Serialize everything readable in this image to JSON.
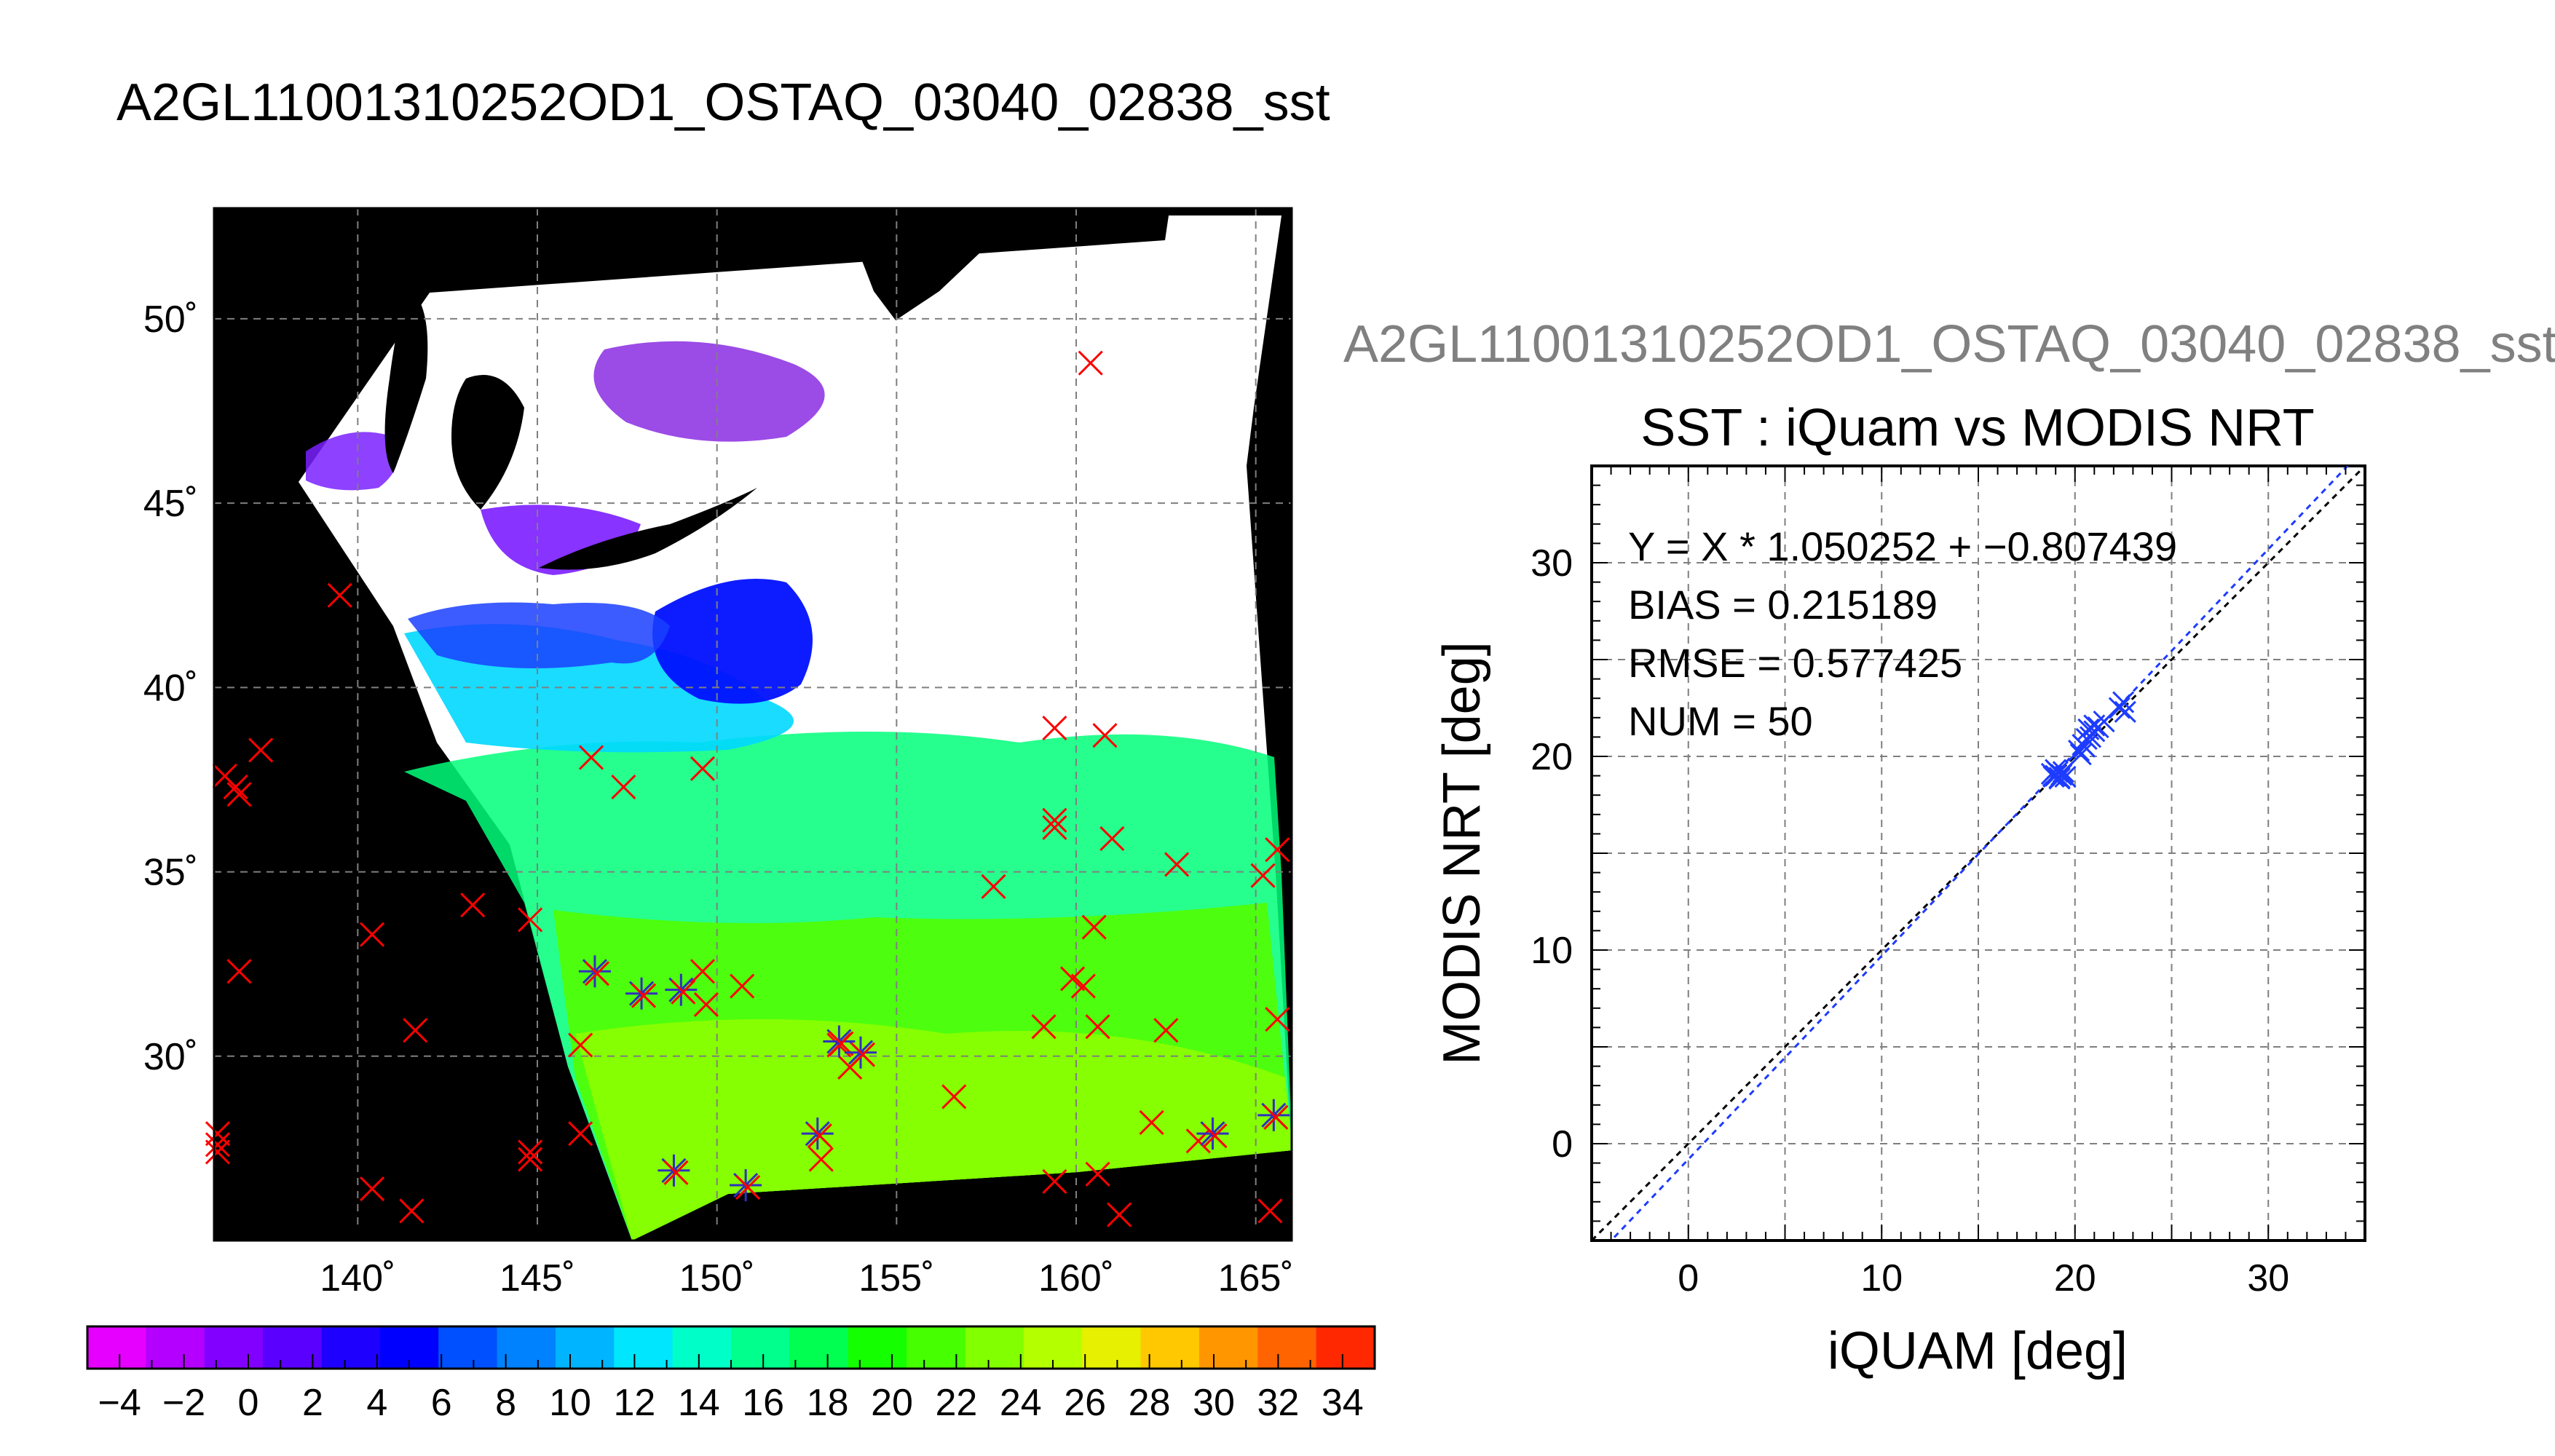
{
  "titles": {
    "main": "A2GL11001310252OD1_OSTAQ_03040_02838_sst",
    "right": "A2GL11001310252OD1_OSTAQ_03040_02838_sst"
  },
  "chart_data": [
    {
      "type": "heatmap",
      "description_kind": "map",
      "title": "",
      "lon_range": [
        136,
        166
      ],
      "lat_range": [
        25,
        53
      ],
      "lon_ticks": [
        140,
        145,
        150,
        155,
        160,
        165
      ],
      "lat_ticks": [
        30,
        35,
        40,
        45,
        50
      ],
      "lon_tick_labels": [
        "140˚",
        "145˚",
        "150˚",
        "155˚",
        "160˚",
        "165˚"
      ],
      "lat_tick_labels": [
        "30˚",
        "35˚",
        "40˚",
        "45˚",
        "50˚"
      ],
      "grid": true,
      "colorbar": {
        "min": -5,
        "max": 35,
        "step": 2,
        "tick_labels": [
          "−4",
          "−2",
          "0",
          "2",
          "4",
          "6",
          "8",
          "10",
          "12",
          "14",
          "16",
          "18",
          "20",
          "22",
          "24",
          "26",
          "28",
          "30",
          "32",
          "34"
        ],
        "tick_values": [
          -4,
          -2,
          0,
          2,
          4,
          6,
          8,
          10,
          12,
          14,
          16,
          18,
          20,
          22,
          24,
          26,
          28,
          30,
          32,
          34
        ],
        "colors": [
          "#e600ff",
          "#b400ff",
          "#8200ff",
          "#5a00ff",
          "#1e00ff",
          "#0000ff",
          "#0050ff",
          "#0082ff",
          "#00b4ff",
          "#00e6ff",
          "#00ffc8",
          "#00ff8c",
          "#00ff50",
          "#14ff00",
          "#46ff00",
          "#82ff00",
          "#b4ff00",
          "#e6f000",
          "#ffc800",
          "#ff9600",
          "#ff6400",
          "#ff2800"
        ]
      },
      "colors": {
        "land": "#000000",
        "no_data": "#ffffff",
        "match": "#ff0000",
        "valid_match": "#3030c0"
      },
      "matchups_red": [
        [
          139.5,
          42.5
        ],
        [
          136.3,
          37.6
        ],
        [
          136.6,
          37.3
        ],
        [
          136.7,
          37.1
        ],
        [
          137.3,
          38.3
        ],
        [
          136.7,
          32.3
        ],
        [
          136.1,
          27.9
        ],
        [
          136.1,
          27.6
        ],
        [
          136.1,
          27.4
        ],
        [
          140.4,
          33.3
        ],
        [
          141.6,
          30.7
        ],
        [
          143.2,
          34.1
        ],
        [
          144.8,
          33.7
        ],
        [
          140.4,
          26.4
        ],
        [
          141.5,
          25.8
        ],
        [
          144.8,
          27.4
        ],
        [
          144.8,
          27.2
        ],
        [
          146.2,
          27.9
        ],
        [
          146.2,
          30.3
        ],
        [
          146.5,
          38.1
        ],
        [
          147.4,
          37.3
        ],
        [
          149.6,
          37.8
        ],
        [
          149.6,
          32.3
        ],
        [
          149.7,
          31.4
        ],
        [
          150.7,
          31.9
        ],
        [
          152.9,
          27.2
        ],
        [
          153.4,
          30.3
        ],
        [
          153.7,
          29.7
        ],
        [
          156.6,
          28.9
        ],
        [
          157.7,
          34.6
        ],
        [
          159.4,
          38.9
        ],
        [
          160.8,
          38.7
        ],
        [
          159.4,
          36.4
        ],
        [
          159.4,
          36.2
        ],
        [
          161.0,
          35.9
        ],
        [
          162.8,
          35.2
        ],
        [
          160.5,
          33.5
        ],
        [
          159.9,
          32.1
        ],
        [
          160.2,
          31.9
        ],
        [
          159.1,
          30.8
        ],
        [
          160.6,
          30.8
        ],
        [
          162.5,
          30.7
        ],
        [
          162.1,
          28.2
        ],
        [
          159.4,
          26.6
        ],
        [
          160.6,
          26.8
        ],
        [
          161.2,
          25.7
        ],
        [
          163.4,
          27.7
        ],
        [
          165.2,
          34.9
        ],
        [
          165.6,
          35.6
        ],
        [
          165.6,
          31.0
        ],
        [
          165.4,
          25.8
        ],
        [
          160.4,
          48.8
        ]
      ],
      "matchups_valid": [
        [
          146.6,
          32.3
        ],
        [
          147.9,
          31.7
        ],
        [
          149.0,
          31.8
        ],
        [
          148.8,
          26.9
        ],
        [
          150.8,
          26.5
        ],
        [
          152.8,
          27.9
        ],
        [
          153.4,
          30.4
        ],
        [
          154.0,
          30.1
        ],
        [
          163.8,
          27.9
        ],
        [
          165.5,
          28.4
        ]
      ]
    },
    {
      "type": "scatter",
      "title": "SST : iQuam vs MODIS NRT",
      "xlabel": "iQUAM [deg]",
      "ylabel": "MODIS NRT [deg]",
      "xlim": [
        -5,
        35
      ],
      "ylim": [
        -5,
        35
      ],
      "x_ticks": [
        0,
        10,
        20,
        30
      ],
      "y_ticks": [
        0,
        10,
        20,
        30
      ],
      "grid": true,
      "annotations": [
        "Y = X * 1.050252 + −0.807439",
        "BIAS = 0.215189",
        "RMSE = 0.577425",
        "NUM = 50"
      ],
      "fit": {
        "slope": 1.050252,
        "intercept": -0.807439
      },
      "points": [
        [
          18.8,
          19.1
        ],
        [
          19.0,
          19.0
        ],
        [
          19.2,
          18.9
        ],
        [
          19.1,
          19.2
        ],
        [
          18.9,
          18.95
        ],
        [
          19.3,
          19.05
        ],
        [
          19.5,
          18.95
        ],
        [
          19.4,
          19.2
        ],
        [
          19.0,
          19.3
        ],
        [
          20.2,
          20.3
        ],
        [
          20.4,
          20.6
        ],
        [
          20.6,
          20.9
        ],
        [
          20.3,
          20.1
        ],
        [
          20.5,
          20.5
        ],
        [
          20.8,
          21.0
        ],
        [
          21.0,
          21.3
        ],
        [
          21.5,
          21.8
        ],
        [
          21.2,
          21.5
        ],
        [
          22.3,
          22.5
        ],
        [
          22.6,
          22.3
        ],
        [
          22.5,
          22.8
        ],
        [
          20.7,
          21.4
        ],
        [
          21.0,
          21.6
        ],
        [
          19.2,
          18.85
        ]
      ],
      "colors": {
        "points": "#1e3cff",
        "fit_line": "#1e3cff",
        "identity_line": "#000000"
      }
    }
  ]
}
